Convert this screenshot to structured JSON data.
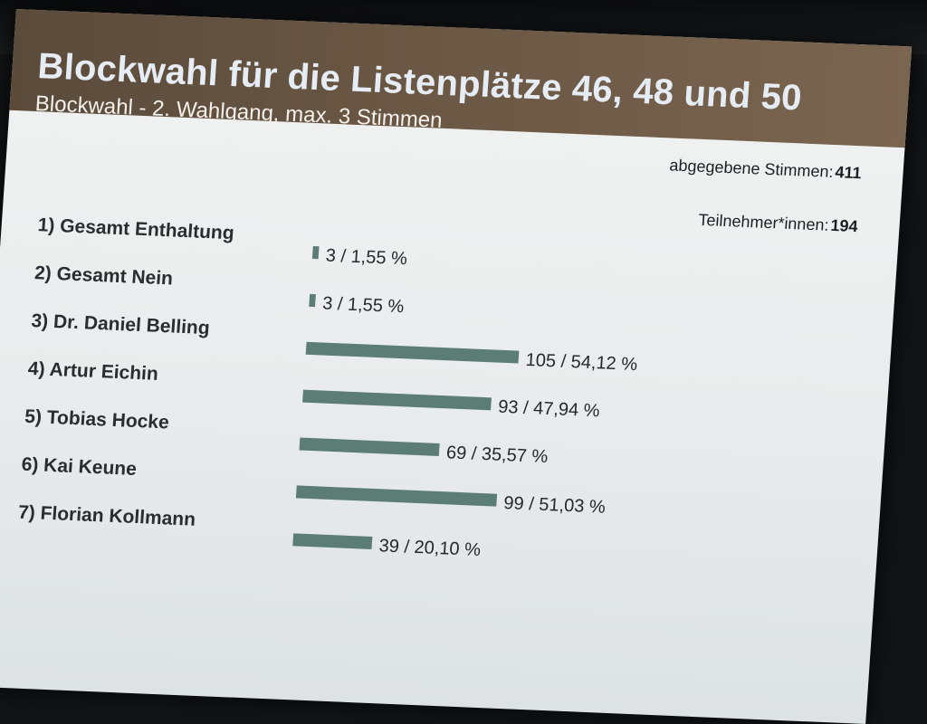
{
  "slide": {
    "title": "Blockwahl für die Listenplätze  46, 48 und 50",
    "subtitle": "Blockwahl - 2. Wahlgang,  max. 3 Stimmen"
  },
  "stats": {
    "votes_label": "abgegebene Stimmen:",
    "votes_value": "411",
    "participants_label": "Teilnehmer*innen:",
    "participants_value": "194"
  },
  "colors": {
    "bar": "#5b7d74",
    "header_band": "#6a5744",
    "title": "#e6ecf4"
  },
  "chart_data": {
    "type": "bar",
    "orientation": "horizontal",
    "title": "Blockwahl für die Listenplätze  46, 48 und 50",
    "categories": [
      "1) Gesamt Enthaltung",
      "2) Gesamt Nein",
      "3) Dr. Daniel Belling",
      "4) Artur Eichin",
      "5) Tobias Hocke",
      "6) Kai Keune",
      "7) Florian Kollmann"
    ],
    "values": [
      3,
      3,
      105,
      93,
      69,
      99,
      39
    ],
    "percentages": [
      1.55,
      1.55,
      54.12,
      47.94,
      35.57,
      51.03,
      20.1
    ],
    "value_labels": [
      "3 / 1,55 %",
      "3 / 1,55 %",
      "105 / 54,12 %",
      "93 / 47,94 %",
      "69 / 35,57 %",
      "99 / 51,03 %",
      "39 / 20,10 %"
    ],
    "xlim": [
      0,
      105
    ],
    "grid": false,
    "legend": "none"
  }
}
